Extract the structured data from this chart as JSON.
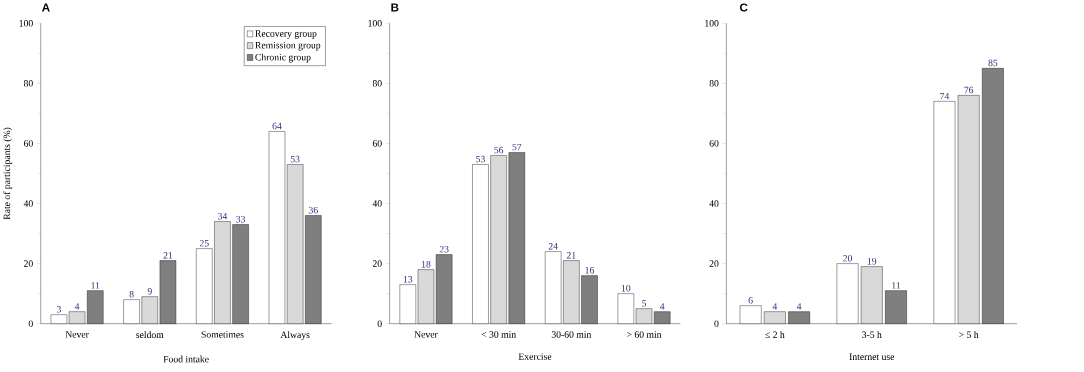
{
  "chart_data": [
    {
      "type": "bar",
      "title": "A",
      "xlabel": "Food intake",
      "ylabel": "Rate of participants (%)",
      "categories": [
        "Never",
        "seldom",
        "Sometimes",
        "Always"
      ],
      "series": [
        {
          "name": "Recovery group",
          "color": "#ffffff",
          "values": [
            3,
            8,
            25,
            64
          ]
        },
        {
          "name": "Remission group",
          "color": "#d9d9d9",
          "values": [
            4,
            9,
            34,
            53
          ]
        },
        {
          "name": "Chronic group",
          "color": "#7f7f7f",
          "values": [
            11,
            21,
            33,
            36
          ]
        }
      ],
      "ylim": [
        0,
        100
      ],
      "yticks": [
        0,
        20,
        40,
        60,
        80,
        100
      ],
      "data_labels": true,
      "legend": "top right",
      "grid": false
    },
    {
      "type": "bar",
      "title": "B",
      "xlabel": "Exercise",
      "categories": [
        "Never",
        "< 30 min",
        "30-60 min",
        "> 60 min"
      ],
      "series": [
        {
          "color": "#ffffff",
          "values": [
            13,
            53,
            24,
            10
          ]
        },
        {
          "color": "#d9d9d9",
          "values": [
            18,
            56,
            21,
            5
          ]
        },
        {
          "color": "#7f7f7f",
          "values": [
            23,
            57,
            16,
            4
          ]
        }
      ],
      "ylim": [
        0,
        100
      ],
      "yticks": [
        0,
        20,
        40,
        60,
        80,
        100
      ],
      "data_labels": true,
      "grid": false
    },
    {
      "type": "bar",
      "title": "C",
      "xlabel": "Internet use",
      "categories": [
        "≤ 2 h",
        "3-5 h",
        "> 5 h"
      ],
      "series": [
        {
          "color": "#ffffff",
          "values": [
            6,
            20,
            74
          ]
        },
        {
          "color": "#d9d9d9",
          "values": [
            4,
            19,
            76
          ]
        },
        {
          "color": "#7f7f7f",
          "values": [
            4,
            11,
            85
          ]
        }
      ],
      "ylim": [
        0,
        100
      ],
      "yticks": [
        0,
        20,
        40,
        60,
        80,
        100
      ],
      "data_labels": true,
      "grid": false
    }
  ]
}
